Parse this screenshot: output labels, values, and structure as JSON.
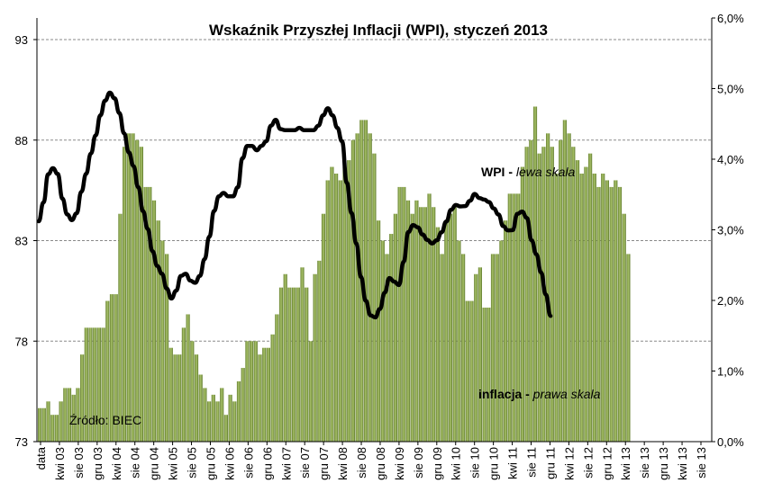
{
  "chart_data": {
    "type": "bar+line",
    "title": "Wskaźnik  Przyszłej Inflacji (WPI), styczeń 2013",
    "source_label": "Źródło: BIEC",
    "series_labels": [
      {
        "bold": "WPI -",
        "italic": " lewa skala"
      },
      {
        "bold": "inflacja -",
        "italic": " prawa skala"
      }
    ],
    "left_axis": {
      "ylim": [
        73,
        93
      ],
      "ticks": [
        "73",
        "78",
        "83",
        "88",
        "93"
      ]
    },
    "right_axis": {
      "ylim": [
        0,
        6
      ],
      "ticks": [
        "0,0%",
        "1,0%",
        "2,0%",
        "3,0%",
        "4,0%",
        "5,0%",
        "6,0%"
      ]
    },
    "x_tick_labels": [
      "data",
      "kwi 03",
      "sie 03",
      "gru 03",
      "kwi 04",
      "sie 04",
      "gru 04",
      "kwi 05",
      "sie 05",
      "gru 05",
      "kwi 06",
      "sie 06",
      "gru 06",
      "kwi 07",
      "sie 07",
      "gru 07",
      "kwi 08",
      "sie 08",
      "gru 08",
      "kwi 09",
      "sie 09",
      "gru 09",
      "kwi 10",
      "sie 10",
      "gru 10",
      "kwi 11",
      "sie 11",
      "gru 11",
      "kwi 12",
      "sie 12",
      "gru 12",
      "kwi 13",
      "sie 13",
      "gru 13",
      "kwi 13",
      "sie 13"
    ],
    "inflation_pct": [
      0.5,
      0.5,
      0.6,
      0.4,
      0.4,
      0.6,
      0.8,
      0.8,
      0.7,
      0.8,
      1.3,
      1.7,
      1.7,
      1.7,
      1.7,
      1.7,
      2.1,
      2.2,
      2.2,
      3.4,
      4.4,
      4.6,
      4.6,
      4.5,
      4.4,
      3.8,
      3.8,
      3.6,
      3.3,
      3.0,
      2.8,
      1.4,
      1.3,
      1.3,
      1.7,
      1.9,
      1.5,
      1.3,
      1.0,
      0.8,
      0.6,
      0.7,
      0.6,
      0.8,
      0.4,
      0.7,
      0.6,
      0.9,
      1.1,
      1.5,
      1.5,
      1.5,
      1.3,
      1.4,
      1.4,
      1.6,
      1.9,
      2.3,
      2.5,
      2.3,
      2.3,
      2.3,
      2.6,
      2.3,
      1.5,
      2.5,
      2.7,
      3.4,
      3.9,
      4.1,
      4.0,
      3.9,
      4.1,
      4.2,
      4.5,
      4.6,
      4.8,
      4.8,
      4.6,
      4.3,
      3.3,
      3.0,
      2.8,
      3.1,
      3.4,
      3.8,
      3.8,
      3.6,
      3.4,
      3.6,
      3.5,
      3.5,
      3.7,
      3.5,
      3.2,
      2.8,
      3.3,
      3.4,
      3.5,
      3.0,
      2.8,
      2.1,
      2.1,
      2.5,
      2.6,
      2.0,
      2.0,
      2.8,
      2.8,
      3.0,
      3.3,
      3.7,
      3.7,
      3.7,
      4.1,
      4.4,
      4.5,
      5.0,
      4.3,
      4.4,
      4.6,
      4.4,
      4.0,
      4.5,
      4.8,
      4.6,
      4.4,
      4.2,
      4.0,
      4.1,
      4.3,
      4.0,
      3.8,
      4.0,
      3.9,
      3.8,
      3.9,
      3.8,
      3.4,
      2.8
    ],
    "wpi": [
      83.96,
      84.9,
      86.3,
      86.6,
      86.32,
      85.09,
      84.3,
      84.02,
      84.36,
      85.43,
      86.32,
      87.33,
      88.23,
      89.23,
      89.96,
      90.36,
      90.08,
      89.35,
      88.34,
      87.39,
      86.71,
      85.65,
      84.47,
      83.58,
      82.47,
      81.74,
      81.35,
      80.62,
      80.12,
      80.51,
      81.24,
      81.35,
      81.01,
      80.9,
      81.24,
      82.08,
      83.2,
      84.47,
      85.2,
      85.37,
      85.2,
      85.2,
      85.65,
      87.1,
      87.71,
      87.71,
      87.49,
      87.71,
      87.94,
      88.72,
      89.01,
      88.55,
      88.49,
      88.49,
      88.49,
      88.61,
      88.49,
      88.49,
      88.49,
      88.72,
      89.23,
      89.58,
      89.23,
      88.61,
      87.94,
      85.88,
      84.37,
      82.86,
      81.19,
      80.01,
      79.28,
      79.18,
      79.6,
      80.41,
      81.14,
      80.96,
      80.79,
      81.95,
      83.43,
      83.77,
      83.66,
      83.3,
      83.03,
      82.86,
      83.02,
      83.41,
      83.95,
      84.53,
      84.77,
      84.7,
      84.72,
      84.98,
      85.32,
      85.11,
      85.04,
      84.92,
      84.6,
      84.3,
      83.72,
      83.51,
      83.52,
      84.33,
      84.44,
      84.13,
      83.02,
      82.32,
      81.41,
      80.32,
      79.25
    ]
  }
}
